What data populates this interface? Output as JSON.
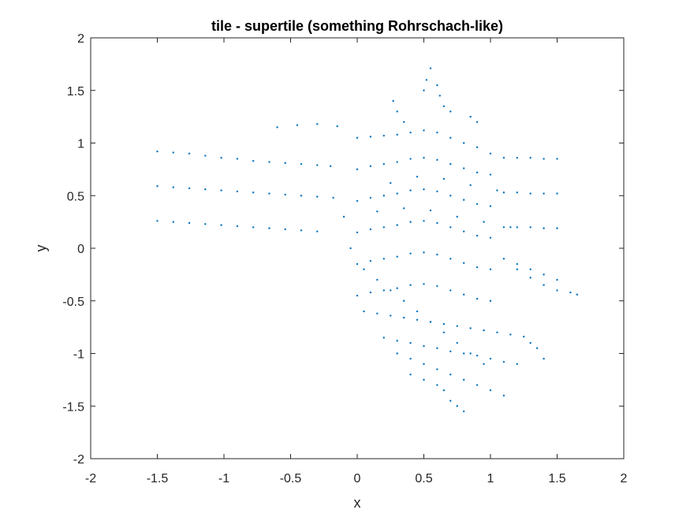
{
  "chart_data": {
    "type": "scatter",
    "title": "tile - supertile (something Rohrschach-like)",
    "xlabel": "x",
    "ylabel": "y",
    "xlim": [
      -2,
      2
    ],
    "ylim": [
      -2,
      2
    ],
    "x_ticks": [
      -2,
      -1.5,
      -1,
      -0.5,
      0,
      0.5,
      1,
      1.5,
      2
    ],
    "y_ticks": [
      -2,
      -1.5,
      -1,
      -0.5,
      0,
      0.5,
      1,
      1.5,
      2
    ],
    "x_tick_labels": [
      "-2",
      "-1.5",
      "-1",
      "-0.5",
      "0",
      "0.5",
      "1",
      "1.5",
      "2"
    ],
    "y_tick_labels": [
      "-2",
      "-1.5",
      "-1",
      "-0.5",
      "0",
      "0.5",
      "1",
      "1.5",
      "2"
    ],
    "grid": false,
    "box": true,
    "marker_color": "#0072BD",
    "series": [
      {
        "x": [
          -1.5,
          -1.38,
          -1.26,
          -1.14,
          -1.02,
          -0.9,
          -0.78,
          -0.66,
          -0.54,
          -0.42,
          -0.3,
          -0.2,
          -1.5,
          -1.38,
          -1.26,
          -1.14,
          -1.02,
          -0.9,
          -0.78,
          -0.66,
          -0.54,
          -0.42,
          -0.3,
          -0.18,
          -1.5,
          -1.38,
          -1.26,
          -1.14,
          -1.02,
          -0.9,
          -0.78,
          -0.66,
          -0.54,
          -0.42,
          -0.3,
          -0.6,
          -0.45,
          -0.3,
          -0.15,
          0.0,
          0.1,
          0.2,
          0.3,
          0.4,
          0.5,
          0.6,
          0.7,
          0.8,
          0.9,
          1.0,
          0.0,
          0.1,
          0.2,
          0.3,
          0.4,
          0.5,
          0.6,
          0.7,
          0.8,
          0.9,
          1.0,
          0.0,
          0.1,
          0.2,
          0.3,
          0.4,
          0.5,
          0.6,
          0.7,
          0.8,
          0.9,
          1.0,
          0.0,
          0.1,
          0.2,
          0.3,
          0.4,
          0.5,
          0.6,
          0.7,
          0.8,
          0.9,
          1.0,
          0.0,
          0.1,
          0.2,
          0.3,
          0.4,
          0.5,
          0.6,
          0.7,
          0.8,
          0.9,
          1.0,
          0.0,
          0.1,
          0.2,
          0.3,
          0.4,
          0.5,
          0.6,
          0.7,
          0.8,
          0.9,
          1.0,
          1.1,
          1.2,
          1.3,
          1.4,
          1.5,
          1.1,
          1.2,
          1.3,
          1.4,
          1.5,
          1.1,
          1.2,
          1.3,
          1.4,
          1.5,
          1.1,
          1.2,
          1.3,
          1.4,
          1.5,
          1.2,
          1.3,
          1.4,
          1.5,
          1.6,
          1.65,
          0.05,
          0.15,
          0.25,
          0.35,
          0.45,
          0.55,
          0.65,
          0.75,
          0.85,
          0.95,
          1.05,
          1.15,
          1.25,
          0.2,
          0.3,
          0.4,
          0.5,
          0.6,
          0.7,
          0.8,
          0.9,
          1.0,
          1.1,
          1.2,
          1.3,
          1.35,
          1.4,
          0.3,
          0.4,
          0.5,
          0.6,
          0.7,
          0.8,
          0.9,
          1.0,
          1.1,
          0.4,
          0.5,
          0.6,
          0.65,
          0.7,
          0.75,
          0.8,
          0.27,
          0.3,
          0.35,
          0.5,
          0.52,
          0.55,
          0.6,
          0.62,
          0.65,
          0.7,
          0.85,
          0.9,
          -0.1,
          -0.05,
          0.05,
          0.15,
          0.25,
          0.35,
          0.45,
          0.55,
          0.65,
          0.75,
          0.85,
          0.95,
          0.25,
          0.45,
          0.65,
          0.85,
          1.05,
          0.15,
          0.35,
          0.55,
          0.75,
          0.95,
          1.15
        ],
        "y": [
          0.92,
          0.91,
          0.9,
          0.88,
          0.86,
          0.85,
          0.83,
          0.82,
          0.81,
          0.8,
          0.79,
          0.78,
          0.59,
          0.58,
          0.57,
          0.56,
          0.55,
          0.54,
          0.53,
          0.52,
          0.51,
          0.5,
          0.49,
          0.48,
          0.26,
          0.25,
          0.24,
          0.23,
          0.22,
          0.21,
          0.2,
          0.19,
          0.18,
          0.17,
          0.16,
          1.15,
          1.17,
          1.18,
          1.16,
          1.05,
          1.06,
          1.07,
          1.08,
          1.1,
          1.12,
          1.1,
          1.05,
          1.0,
          0.96,
          0.9,
          0.75,
          0.78,
          0.8,
          0.82,
          0.85,
          0.86,
          0.84,
          0.8,
          0.76,
          0.72,
          0.7,
          0.45,
          0.48,
          0.5,
          0.52,
          0.55,
          0.56,
          0.54,
          0.5,
          0.46,
          0.42,
          0.4,
          0.15,
          0.18,
          0.2,
          0.22,
          0.25,
          0.26,
          0.24,
          0.2,
          0.16,
          0.12,
          0.1,
          -0.15,
          -0.12,
          -0.1,
          -0.08,
          -0.05,
          -0.04,
          -0.06,
          -0.1,
          -0.14,
          -0.18,
          -0.2,
          -0.45,
          -0.42,
          -0.4,
          -0.38,
          -0.35,
          -0.34,
          -0.36,
          -0.4,
          -0.44,
          -0.48,
          -0.5,
          0.86,
          0.86,
          0.86,
          0.85,
          0.85,
          0.53,
          0.53,
          0.52,
          0.52,
          0.52,
          0.2,
          0.2,
          0.2,
          0.19,
          0.19,
          -0.1,
          -0.15,
          -0.2,
          -0.25,
          -0.3,
          -0.2,
          -0.28,
          -0.35,
          -0.4,
          -0.42,
          -0.44,
          -0.6,
          -0.62,
          -0.64,
          -0.66,
          -0.68,
          -0.7,
          -0.72,
          -0.74,
          -0.76,
          -0.78,
          -0.8,
          -0.82,
          -0.84,
          -0.85,
          -0.88,
          -0.9,
          -0.93,
          -0.95,
          -0.98,
          -1.0,
          -1.02,
          -1.05,
          -1.08,
          -1.1,
          -0.9,
          -0.95,
          -1.05,
          -1.0,
          -1.05,
          -1.1,
          -1.15,
          -1.2,
          -1.25,
          -1.3,
          -1.35,
          -1.4,
          -1.2,
          -1.25,
          -1.3,
          -1.35,
          -1.45,
          -1.5,
          -1.55,
          1.4,
          1.3,
          1.2,
          1.5,
          1.6,
          1.71,
          1.55,
          1.45,
          1.35,
          1.3,
          1.25,
          1.2,
          0.3,
          0.0,
          -0.2,
          -0.3,
          -0.4,
          -0.5,
          -0.6,
          -0.7,
          -0.8,
          -0.9,
          -1.0,
          -1.1,
          0.62,
          0.68,
          0.66,
          0.6,
          0.55,
          0.35,
          0.38,
          0.36,
          0.3,
          0.25,
          0.2
        ]
      }
    ]
  }
}
